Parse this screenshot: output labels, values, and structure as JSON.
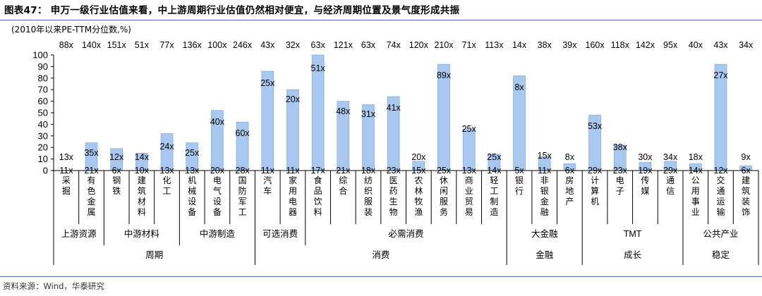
{
  "figure": {
    "title": "图表47： 申万一级行业估值来看，中上游周期行业估值仍然相对便宜，与经济周期位置及景气度形成共振",
    "unit": "(2010年以来PE-TTM分位数,%)",
    "source": "资料来源：Wind，华泰研究"
  },
  "colors": {
    "bar": "#a9c8ef",
    "bar_stroke": "#7a9fd6",
    "axis": "#000000",
    "rule": "#4a6fa8"
  },
  "chart_data": {
    "type": "bar",
    "ylim": [
      0,
      100
    ],
    "yticks": [
      0,
      10,
      20,
      30,
      40,
      50,
      60,
      70,
      80,
      90,
      100
    ],
    "categories": [
      "采掘",
      "有色金属",
      "钢铁",
      "建筑材料",
      "化工",
      "机械设备",
      "电气设备",
      "国防军工",
      "汽车",
      "家用电器",
      "食品饮料",
      "综合",
      "纺织服装",
      "医药生物",
      "农林牧渔",
      "休闲服务",
      "商业贸易",
      "轻工制造",
      "银行",
      "非银金融",
      "房地产",
      "计算机",
      "电子",
      "传媒",
      "通信",
      "公用事业",
      "交通运输",
      "建筑装饰"
    ],
    "values": [
      0,
      24,
      19,
      15,
      32,
      24,
      52,
      42,
      86,
      70,
      100,
      60,
      57,
      64,
      8,
      92,
      36,
      14,
      82,
      12,
      6,
      48,
      22,
      7,
      8,
      6,
      92,
      4
    ],
    "current_pe": [
      "88x",
      "140x",
      "151x",
      "51x",
      "77x",
      "136x",
      "100x",
      "246x",
      "43x",
      "32x",
      "63x",
      "121x",
      "63x",
      "74x",
      "120x",
      "210x",
      "71x",
      "113x",
      "14x",
      "38x",
      "39x",
      "160x",
      "118x",
      "142x",
      "95x",
      "40x",
      "43x",
      "34x"
    ],
    "max_pe": [
      "13x",
      "35x",
      "12x",
      "14x",
      "24x",
      "25x",
      "40x",
      "60x",
      "25x",
      "20x",
      "51x",
      "48x",
      "31x",
      "41x",
      "20x",
      "89x",
      "25x",
      "25x",
      "8x",
      "15x",
      "8x",
      "53x",
      "38x",
      "30x",
      "34x",
      "18x",
      "27x",
      "9x"
    ],
    "min_pe": [
      "11x",
      "21x",
      "6x",
      "10x",
      "13x",
      "13x",
      "20x",
      "28x",
      "11x",
      "11x",
      "17x",
      "21x",
      "18x",
      "23x",
      "15x",
      "25x",
      "13x",
      "14x",
      "5x",
      "11x",
      "6x",
      "29x",
      "23x",
      "19x",
      "29x",
      "14x",
      "12x",
      "6x"
    ],
    "groups_l1": [
      {
        "label": "上游资源",
        "start": 0,
        "end": 1
      },
      {
        "label": "中游材料",
        "start": 2,
        "end": 4
      },
      {
        "label": "中游制造",
        "start": 5,
        "end": 7
      },
      {
        "label": "可选消费",
        "start": 8,
        "end": 9
      },
      {
        "label": "必需消费",
        "start": 10,
        "end": 17
      },
      {
        "label": "大金融",
        "start": 18,
        "end": 20
      },
      {
        "label": "TMT",
        "start": 21,
        "end": 24
      },
      {
        "label": "公共产业",
        "start": 25,
        "end": 27
      }
    ],
    "groups_l2": [
      {
        "label": "周期",
        "start": 0,
        "end": 7
      },
      {
        "label": "消费",
        "start": 8,
        "end": 17
      },
      {
        "label": "金融",
        "start": 18,
        "end": 20
      },
      {
        "label": "成长",
        "start": 21,
        "end": 24
      },
      {
        "label": "稳定",
        "start": 25,
        "end": 27
      }
    ]
  }
}
